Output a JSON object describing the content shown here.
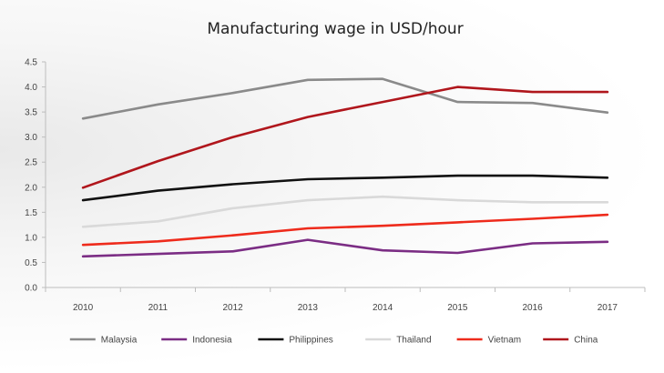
{
  "chart_data": {
    "type": "line",
    "title": "Manufacturing wage in USD/hour",
    "xlabel": "",
    "ylabel": "",
    "x": [
      "2010",
      "2011",
      "2012",
      "2013",
      "2014",
      "2015",
      "2016",
      "2017"
    ],
    "y_ticks": [
      "0.0",
      "0.5",
      "1.0",
      "1.5",
      "2.0",
      "2.5",
      "3.0",
      "3.5",
      "4.0",
      "4.5"
    ],
    "ylim": [
      0,
      4.5
    ],
    "grid": false,
    "legend_position": "bottom",
    "series": [
      {
        "name": "Malaysia",
        "color": "#8a8a8a",
        "values": [
          3.37,
          3.65,
          3.88,
          4.14,
          4.16,
          3.7,
          3.68,
          3.49
        ]
      },
      {
        "name": "Indonesia",
        "color": "#7b2d84",
        "values": [
          0.62,
          0.67,
          0.72,
          0.95,
          0.74,
          0.69,
          0.88,
          0.91
        ]
      },
      {
        "name": "Philippines",
        "color": "#111111",
        "values": [
          1.74,
          1.93,
          2.06,
          2.16,
          2.19,
          2.23,
          2.23,
          2.19
        ]
      },
      {
        "name": "Thailand",
        "color": "#d9d9d9",
        "values": [
          1.21,
          1.32,
          1.58,
          1.74,
          1.81,
          1.74,
          1.7,
          1.7
        ]
      },
      {
        "name": "Vietnam",
        "color": "#ee2b1c",
        "values": [
          0.85,
          0.92,
          1.04,
          1.18,
          1.23,
          1.3,
          1.37,
          1.45
        ]
      },
      {
        "name": "China",
        "color": "#b0161c",
        "values": [
          1.99,
          2.52,
          3.0,
          3.4,
          3.7,
          4.0,
          3.9,
          3.9
        ]
      }
    ]
  }
}
